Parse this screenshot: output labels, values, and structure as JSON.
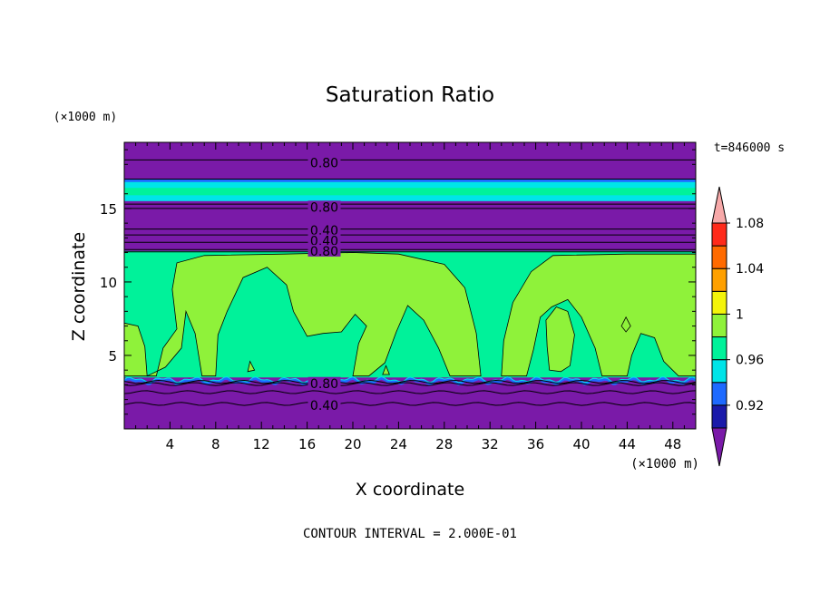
{
  "chart_data": {
    "type": "heatmap",
    "title": "Saturation Ratio",
    "xlabel": "X coordinate",
    "ylabel": "Z coordinate",
    "x_unit": "(×1000 m)",
    "z_unit": "(×1000 m)",
    "time_label": "t=846000 s",
    "footer": "CONTOUR INTERVAL = 2.000E-01",
    "xlim": [
      0,
      50
    ],
    "ylim": [
      0,
      19.5
    ],
    "x_ticks": [
      "4",
      "8",
      "12",
      "16",
      "20",
      "24",
      "28",
      "32",
      "36",
      "40",
      "44",
      "48"
    ],
    "y_ticks": [
      "5",
      "10",
      "15"
    ],
    "contour_labels": [
      {
        "text": "0.80",
        "x": 17.5,
        "z": 18.1
      },
      {
        "text": "0.80",
        "x": 17.5,
        "z": 15.1
      },
      {
        "text": "0.40",
        "x": 17.5,
        "z": 13.5
      },
      {
        "text": "0.40",
        "x": 17.5,
        "z": 12.8
      },
      {
        "text": "0.80",
        "x": 17.5,
        "z": 12.1
      },
      {
        "text": "0.80",
        "x": 17.5,
        "z": 3.1
      },
      {
        "text": "0.40",
        "x": 17.5,
        "z": 1.6
      }
    ],
    "colorbar": {
      "labels": [
        "0.92",
        "0.96",
        "1",
        "1.04",
        "1.08"
      ],
      "colors": [
        "#7a1aa8",
        "#1a1aaa",
        "#1e6aff",
        "#00e4e8",
        "#00f29a",
        "#8ff23a",
        "#f4f40a",
        "#ffa000",
        "#ff6a00",
        "#ff2a1a",
        "#f7a9a9"
      ]
    },
    "colors": {
      "below": "#7a1aa8",
      "near_one": "#00f29a",
      "above_one": "#8ff23a",
      "band_blue": "#1e6aff",
      "band_cyan": "#00e4e8"
    }
  }
}
